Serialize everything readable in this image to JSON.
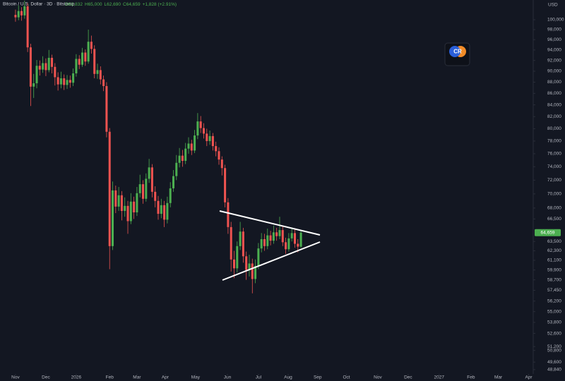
{
  "chart_data": {
    "type": "candlestick",
    "title": "Bitcoin / U.S. Dollar · 3D · Bitstamp",
    "ohlc_labels": [
      "O62,832",
      "H65,000",
      "L62,690",
      "C64,659"
    ],
    "change_label": "+1,828 (+2.91%)",
    "currency": "USD",
    "logo_text": "CR",
    "up_color": "#4caf50",
    "down_color": "#ef5350",
    "log_scale": true,
    "grid": false,
    "last_price": {
      "value": 64659,
      "label": "64,659"
    },
    "open": [
      101000,
      100500,
      101800,
      100900,
      102800,
      94500,
      87200,
      87800,
      91000,
      90300,
      91500,
      90200,
      92500,
      90800,
      88900,
      87600,
      88700,
      87500,
      88400,
      87900,
      89600,
      92300,
      91200,
      93500,
      91800,
      95600,
      94200,
      89500,
      90200,
      88500,
      87300,
      79500,
      62900,
      70500,
      68200,
      69800,
      67600,
      68300,
      66200,
      68900,
      67400,
      70100,
      71400,
      69300,
      72200,
      73900,
      70300,
      69000,
      67200,
      68400,
      66400,
      68700,
      70800,
      72600,
      74600,
      75700,
      74900,
      76800,
      77600,
      76500,
      78900,
      81200,
      80100,
      79200,
      78000,
      78800,
      77200,
      76400,
      75100,
      73800,
      68800,
      65400,
      61200,
      60100,
      62900,
      64800,
      61600,
      59900,
      60700,
      58800,
      60400,
      62600,
      63800,
      62900,
      64300,
      63600,
      64700,
      64200,
      65000,
      63400,
      62500,
      63900,
      64600,
      63200,
      62832
    ],
    "high": [
      102100,
      103000,
      102600,
      104000,
      103500,
      95200,
      89500,
      92100,
      92000,
      92800,
      92400,
      94000,
      93100,
      91500,
      89800,
      89900,
      89400,
      89300,
      89200,
      90500,
      93200,
      93000,
      94400,
      94100,
      98000,
      96800,
      94900,
      91400,
      90900,
      89200,
      88000,
      80100,
      71800,
      71200,
      71000,
      70400,
      69500,
      69000,
      70100,
      69600,
      71000,
      72800,
      72000,
      73000,
      75200,
      74400,
      71100,
      69700,
      69300,
      69000,
      69600,
      71700,
      73500,
      75800,
      76900,
      76600,
      77700,
      78600,
      78200,
      79800,
      82600,
      82100,
      80900,
      80000,
      79700,
      79300,
      77900,
      77000,
      75600,
      74300,
      69400,
      66100,
      62300,
      63500,
      66100,
      65300,
      62200,
      61800,
      61300,
      61200,
      63300,
      64600,
      64500,
      65200,
      64900,
      65600,
      65300,
      66800,
      65500,
      64000,
      64600,
      65300,
      65100,
      63800,
      65000
    ],
    "low": [
      99600,
      99900,
      99800,
      100200,
      93600,
      83800,
      85200,
      86900,
      89200,
      89700,
      89100,
      89800,
      89600,
      87400,
      86500,
      86900,
      86600,
      86800,
      87000,
      87300,
      89000,
      90400,
      90800,
      91000,
      91400,
      93300,
      88700,
      88600,
      87600,
      86400,
      78600,
      60000,
      62400,
      67300,
      67600,
      66300,
      66800,
      64500,
      65800,
      66500,
      66900,
      69500,
      68600,
      68900,
      71600,
      69500,
      68100,
      66400,
      66600,
      65400,
      65900,
      68100,
      70300,
      72000,
      73900,
      74000,
      74400,
      76000,
      75800,
      76100,
      78300,
      79300,
      78400,
      77200,
      77400,
      76500,
      75600,
      74300,
      72700,
      68100,
      64500,
      59700,
      58900,
      59600,
      62400,
      60800,
      58700,
      59100,
      57100,
      58300,
      60000,
      62100,
      62300,
      62500,
      63000,
      63200,
      63600,
      63800,
      62900,
      61900,
      62200,
      63500,
      62700,
      62100,
      62690
    ],
    "close": [
      100500,
      101800,
      100900,
      102800,
      94500,
      87200,
      87800,
      91000,
      90300,
      91500,
      90200,
      92500,
      90800,
      88900,
      87600,
      88700,
      87500,
      88400,
      87900,
      89600,
      92300,
      91200,
      93500,
      91800,
      95600,
      94200,
      89500,
      90200,
      88500,
      87300,
      79500,
      62900,
      70500,
      68200,
      69800,
      67600,
      68300,
      66200,
      68900,
      67400,
      70100,
      71400,
      69300,
      72200,
      73900,
      70300,
      69000,
      67200,
      68400,
      66400,
      68700,
      70800,
      72600,
      74600,
      75700,
      74900,
      76800,
      77600,
      76500,
      78900,
      81200,
      80100,
      79200,
      78000,
      78800,
      77200,
      76400,
      75100,
      73800,
      68800,
      65400,
      61200,
      60100,
      62900,
      64800,
      61600,
      59900,
      60700,
      58800,
      60400,
      62600,
      63800,
      62900,
      64300,
      63600,
      64700,
      64200,
      65000,
      63400,
      62500,
      63900,
      64600,
      63200,
      62832,
      64659
    ],
    "xlim": [
      -5.1,
      170.5
    ],
    "xticks": [
      {
        "value": 0,
        "label": "Nov"
      },
      {
        "value": 10,
        "label": "Dec"
      },
      {
        "value": 20,
        "label": "2026"
      },
      {
        "value": 31,
        "label": "Feb"
      },
      {
        "value": 40,
        "label": "Mar"
      },
      {
        "value": 49.3,
        "label": "Apr"
      },
      {
        "value": 59.3,
        "label": "May"
      },
      {
        "value": 69.8,
        "label": "Jun"
      },
      {
        "value": 80,
        "label": "Jul"
      },
      {
        "value": 89.8,
        "label": "Aug"
      },
      {
        "value": 99.5,
        "label": "Sep"
      },
      {
        "value": 109,
        "label": "Oct"
      },
      {
        "value": 119.3,
        "label": "Nov"
      },
      {
        "value": 129.3,
        "label": "Dec"
      },
      {
        "value": 139.5,
        "label": "2027"
      },
      {
        "value": 150,
        "label": "Feb"
      },
      {
        "value": 159,
        "label": "Mar"
      },
      {
        "value": 169,
        "label": "Apr"
      }
    ],
    "ylim": [
      48410,
      104130
    ],
    "yticks": [
      {
        "value": 100000,
        "label": "100,000"
      },
      {
        "value": 98000,
        "label": "98,000"
      },
      {
        "value": 96000,
        "label": "96,000"
      },
      {
        "value": 94000,
        "label": "94,000"
      },
      {
        "value": 92000,
        "label": "92,000"
      },
      {
        "value": 90000,
        "label": "90,000"
      },
      {
        "value": 88000,
        "label": "88,000"
      },
      {
        "value": 86000,
        "label": "86,000"
      },
      {
        "value": 84000,
        "label": "84,000"
      },
      {
        "value": 82000,
        "label": "82,000"
      },
      {
        "value": 80000,
        "label": "80,000"
      },
      {
        "value": 78000,
        "label": "78,000"
      },
      {
        "value": 76000,
        "label": "76,000"
      },
      {
        "value": 74000,
        "label": "74,000"
      },
      {
        "value": 72000,
        "label": "72,000"
      },
      {
        "value": 70000,
        "label": "70,000"
      },
      {
        "value": 68000,
        "label": "68,000"
      },
      {
        "value": 66500,
        "label": "66,500"
      },
      {
        "value": 63500,
        "label": "63,500"
      },
      {
        "value": 62300,
        "label": "62,300"
      },
      {
        "value": 61100,
        "label": "61,100"
      },
      {
        "value": 59900,
        "label": "59,900"
      },
      {
        "value": 58700,
        "label": "58,700"
      },
      {
        "value": 57450,
        "label": "57,450"
      },
      {
        "value": 56200,
        "label": "56,200"
      },
      {
        "value": 55000,
        "label": "55,000"
      },
      {
        "value": 53800,
        "label": "53,800"
      },
      {
        "value": 52600,
        "label": "52,600"
      },
      {
        "value": 51200,
        "label": "51,200"
      },
      {
        "value": 50800,
        "label": "50,800"
      },
      {
        "value": 49600,
        "label": "49,600"
      },
      {
        "value": 48840,
        "label": "48,840"
      }
    ]
  }
}
